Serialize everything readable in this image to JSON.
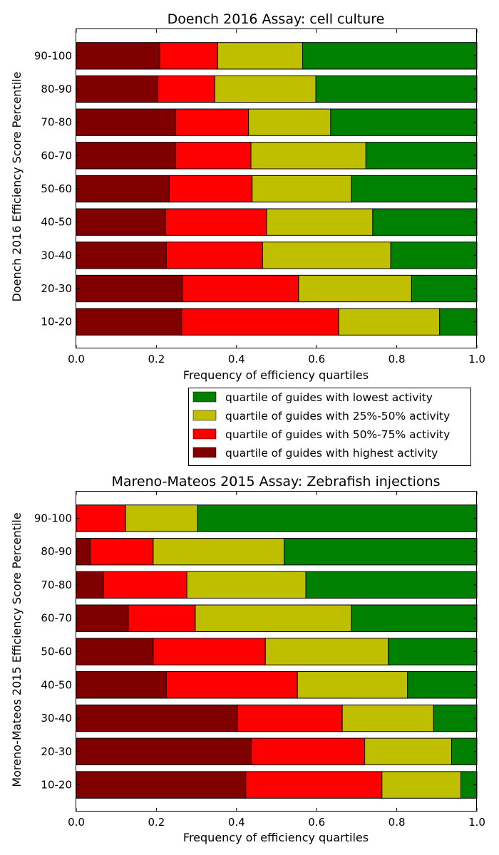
{
  "colors": {
    "lowest": "#008000",
    "q25_50": "#bfbf00",
    "q50_75": "#ff0000",
    "highest": "#800000"
  },
  "legend": {
    "items": [
      {
        "key": "lowest",
        "label": "quartile of guides with lowest activity"
      },
      {
        "key": "q25_50",
        "label": "quartile of guides with 25%-50% activity"
      },
      {
        "key": "q50_75",
        "label": "quartile of guides with 50%-75% activity"
      },
      {
        "key": "highest",
        "label": "quartile of guides with highest activity"
      }
    ]
  },
  "chart_data": [
    {
      "type": "bar",
      "orientation": "horizontal",
      "stacked": true,
      "title": "Doench 2016 Assay: cell culture",
      "xlabel": "Frequency of efficiency quartiles",
      "ylabel": "Doench 2016 Efficiency Score Percentile",
      "xlim": [
        0.0,
        1.0
      ],
      "xticks": [
        "0.0",
        "0.2",
        "0.4",
        "0.6",
        "0.8",
        "1.0"
      ],
      "categories": [
        "10-20",
        "20-30",
        "30-40",
        "40-50",
        "50-60",
        "60-70",
        "70-80",
        "80-90",
        "90-100"
      ],
      "series": [
        {
          "key": "highest",
          "values": [
            0.263,
            0.265,
            0.225,
            0.223,
            0.232,
            0.248,
            0.248,
            0.203,
            0.208
          ]
        },
        {
          "key": "q50_75",
          "values": [
            0.392,
            0.29,
            0.24,
            0.252,
            0.207,
            0.188,
            0.182,
            0.143,
            0.145
          ]
        },
        {
          "key": "q25_50",
          "values": [
            0.252,
            0.282,
            0.32,
            0.265,
            0.248,
            0.287,
            0.205,
            0.252,
            0.212
          ]
        },
        {
          "key": "lowest",
          "values": [
            0.093,
            0.163,
            0.215,
            0.26,
            0.313,
            0.277,
            0.365,
            0.402,
            0.435
          ]
        }
      ]
    },
    {
      "type": "bar",
      "orientation": "horizontal",
      "stacked": true,
      "title": "Mareno-Mateos 2015 Assay: Zebrafish injections",
      "xlabel": "Frequency of efficiency quartiles",
      "ylabel": "Moreno-Mateos 2015 Efficiency Score Percentile",
      "xlim": [
        0.0,
        1.0
      ],
      "xticks": [
        "0.0",
        "0.2",
        "0.4",
        "0.6",
        "0.8",
        "1.0"
      ],
      "categories": [
        "10-20",
        "20-30",
        "30-40",
        "40-50",
        "50-60",
        "60-70",
        "70-80",
        "80-90",
        "90-100"
      ],
      "series": [
        {
          "key": "highest",
          "values": [
            0.423,
            0.437,
            0.402,
            0.225,
            0.192,
            0.13,
            0.068,
            0.035,
            0.0
          ]
        },
        {
          "key": "q50_75",
          "values": [
            0.34,
            0.283,
            0.262,
            0.327,
            0.28,
            0.167,
            0.208,
            0.157,
            0.123
          ]
        },
        {
          "key": "q25_50",
          "values": [
            0.197,
            0.217,
            0.228,
            0.275,
            0.307,
            0.39,
            0.297,
            0.327,
            0.18
          ]
        },
        {
          "key": "lowest",
          "values": [
            0.04,
            0.063,
            0.108,
            0.173,
            0.221,
            0.313,
            0.427,
            0.481,
            0.697
          ]
        }
      ]
    }
  ]
}
